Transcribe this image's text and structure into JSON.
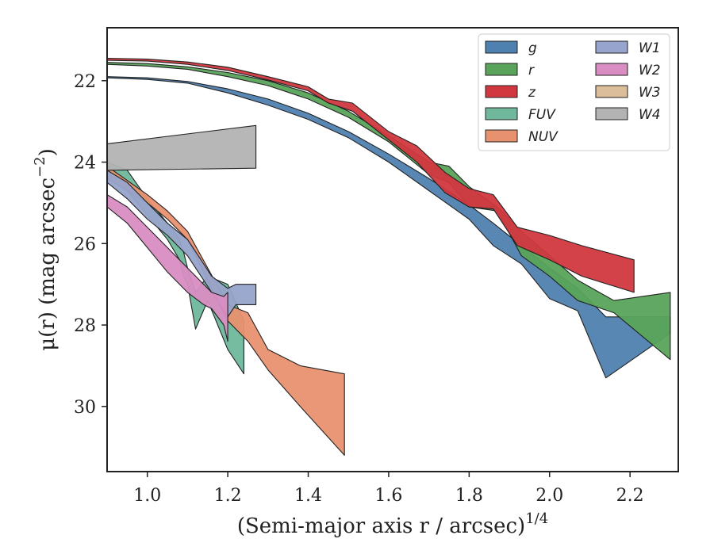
{
  "chart_data": {
    "type": "area",
    "xlabel": "(Semi-major axis r / arcsec)",
    "xlabel_exponent": "1/4",
    "ylabel": "μ(r) (mag arcsec",
    "ylabel_exponent": "−2",
    "ylabel_close": ")",
    "xlim": [
      0.9,
      2.32
    ],
    "ylim": [
      31.6,
      20.7
    ],
    "y_inverted": true,
    "grid": false,
    "legend_position": "top-right",
    "legend_columns": 2,
    "xticks": [
      1.0,
      1.2,
      1.4,
      1.6,
      1.8,
      2.0,
      2.2
    ],
    "xtick_labels": [
      "1.0",
      "1.2",
      "1.4",
      "1.6",
      "1.8",
      "2.0",
      "2.2"
    ],
    "yticks": [
      22,
      24,
      26,
      28,
      30
    ],
    "ytick_labels": [
      "22",
      "24",
      "26",
      "28",
      "30"
    ],
    "series": [
      {
        "name": "FUV",
        "color": "#6fb89c",
        "x": [
          0.9,
          0.95,
          1.0,
          1.05,
          1.08,
          1.09,
          1.1,
          1.12,
          1.15,
          1.2,
          1.24
        ],
        "y_upper": [
          24.0,
          24.2,
          24.9,
          25.5,
          25.9,
          26.2,
          26.6,
          27.2,
          26.8,
          27.0,
          27.9
        ],
        "y_lower": [
          24.2,
          24.7,
          25.3,
          25.9,
          26.4,
          26.8,
          27.0,
          28.1,
          27.4,
          28.6,
          29.2
        ]
      },
      {
        "name": "NUV",
        "color": "#e8916f",
        "x": [
          0.9,
          1.0,
          1.05,
          1.1,
          1.15,
          1.2,
          1.25,
          1.3,
          1.38,
          1.49
        ],
        "y_upper": [
          24.1,
          24.8,
          25.2,
          25.7,
          26.6,
          27.5,
          27.7,
          28.6,
          29.0,
          29.2
        ],
        "y_lower": [
          24.4,
          25.0,
          25.4,
          25.9,
          26.9,
          27.9,
          28.4,
          29.1,
          30.0,
          31.2
        ]
      },
      {
        "name": "W1",
        "color": "#97a4cb",
        "x": [
          0.9,
          0.95,
          1.0,
          1.05,
          1.1,
          1.14,
          1.16,
          1.2,
          1.22,
          1.27
        ],
        "y_upper": [
          24.2,
          24.5,
          25.0,
          25.5,
          25.9,
          26.5,
          26.8,
          27.1,
          27.0,
          27.0
        ],
        "y_lower": [
          24.5,
          24.9,
          25.4,
          25.8,
          26.3,
          26.9,
          27.2,
          27.8,
          27.5,
          27.5
        ]
      },
      {
        "name": "W2",
        "color": "#d98dc3",
        "x": [
          0.9,
          0.95,
          1.0,
          1.05,
          1.1,
          1.14,
          1.16,
          1.19,
          1.2
        ],
        "y_upper": [
          24.8,
          25.1,
          25.6,
          26.1,
          26.6,
          27.0,
          27.2,
          27.3,
          27.2
        ],
        "y_lower": [
          25.1,
          25.5,
          26.1,
          26.7,
          27.2,
          27.5,
          27.6,
          28.0,
          28.4
        ]
      },
      {
        "name": "W3",
        "color": "#dbbd9a",
        "x": [],
        "y_upper": [],
        "y_lower": []
      },
      {
        "name": "W4",
        "color": "#b3b3b3",
        "x": [
          0.9,
          1.27
        ],
        "y_upper": [
          23.55,
          23.1
        ],
        "y_lower": [
          24.2,
          24.15
        ]
      },
      {
        "name": "g",
        "color": "#4f81b0",
        "x": [
          0.9,
          1.0,
          1.1,
          1.2,
          1.3,
          1.4,
          1.5,
          1.6,
          1.7,
          1.8,
          1.86,
          1.93,
          2.0,
          2.07,
          2.14,
          2.3
        ],
        "y_upper": [
          21.9,
          21.93,
          22.02,
          22.2,
          22.45,
          22.8,
          23.25,
          23.8,
          24.4,
          25.05,
          25.5,
          26.05,
          26.6,
          27.1,
          27.8,
          27.8
        ],
        "y_lower": [
          21.93,
          21.97,
          22.06,
          22.3,
          22.6,
          22.95,
          23.4,
          24.0,
          24.7,
          25.4,
          26.05,
          26.5,
          27.35,
          27.65,
          29.3,
          28.2
        ]
      },
      {
        "name": "r",
        "color": "#59a45a",
        "x": [
          0.9,
          1.0,
          1.1,
          1.2,
          1.3,
          1.4,
          1.5,
          1.6,
          1.7,
          1.75,
          1.8,
          1.87,
          1.93,
          2.0,
          2.07,
          2.16,
          2.3
        ],
        "y_upper": [
          21.55,
          21.58,
          21.66,
          21.8,
          22.0,
          22.3,
          22.75,
          23.35,
          24.0,
          24.1,
          24.6,
          25.1,
          25.7,
          26.3,
          26.9,
          27.4,
          27.2
        ],
        "y_lower": [
          21.6,
          21.64,
          21.72,
          21.9,
          22.12,
          22.45,
          22.9,
          23.5,
          24.3,
          24.5,
          25.1,
          25.2,
          26.3,
          26.8,
          27.4,
          27.7,
          28.85
        ]
      },
      {
        "name": "z",
        "color": "#d1373f",
        "x": [
          0.9,
          1.0,
          1.1,
          1.2,
          1.3,
          1.4,
          1.45,
          1.51,
          1.6,
          1.67,
          1.74,
          1.8,
          1.86,
          1.92,
          2.0,
          2.08,
          2.21
        ],
        "y_upper": [
          21.45,
          21.47,
          21.54,
          21.67,
          21.9,
          22.15,
          22.45,
          22.55,
          23.25,
          23.6,
          24.25,
          24.65,
          24.8,
          25.6,
          25.8,
          26.05,
          26.4
        ],
        "y_lower": [
          21.5,
          21.52,
          21.6,
          21.75,
          21.98,
          22.25,
          22.55,
          22.75,
          23.45,
          24.0,
          24.75,
          25.1,
          25.15,
          26.05,
          26.4,
          26.8,
          27.2
        ]
      }
    ],
    "legend": [
      {
        "name": "g",
        "color": "#4f81b0"
      },
      {
        "name": "r",
        "color": "#59a45a"
      },
      {
        "name": "z",
        "color": "#d1373f"
      },
      {
        "name": "FUV",
        "color": "#6fb89c"
      },
      {
        "name": "NUV",
        "color": "#e8916f"
      },
      {
        "name": "W1",
        "color": "#97a4cb"
      },
      {
        "name": "W2",
        "color": "#d98dc3"
      },
      {
        "name": "W3",
        "color": "#dbbd9a"
      },
      {
        "name": "W4",
        "color": "#b3b3b3"
      }
    ]
  }
}
